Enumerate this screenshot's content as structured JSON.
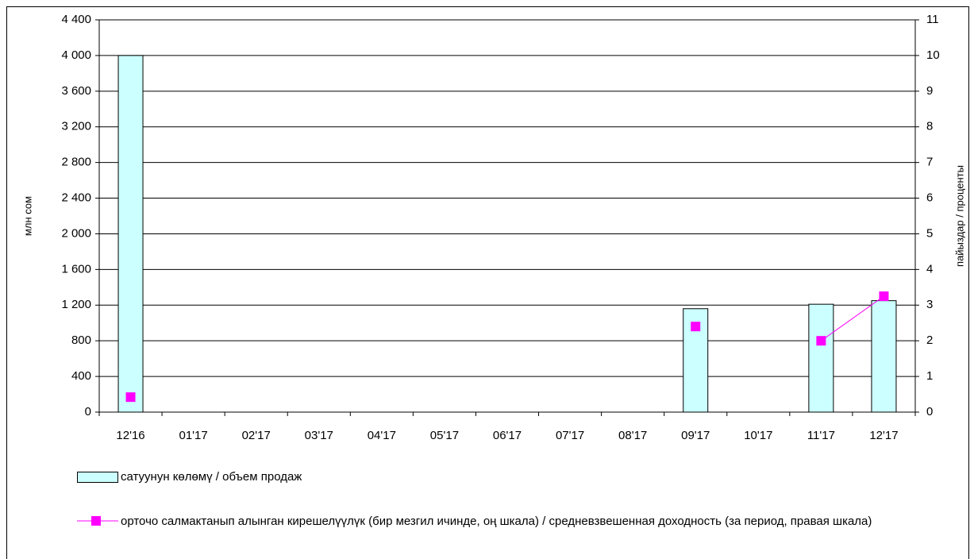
{
  "chart_data": {
    "type": "bar",
    "categories": [
      "12'16",
      "01'17",
      "02'17",
      "03'17",
      "04'17",
      "05'17",
      "06'17",
      "07'17",
      "08'17",
      "09'17",
      "10'17",
      "11'17",
      "12'17"
    ],
    "series": [
      {
        "name": "сатуунун көлөмү /  объем продаж",
        "type": "bar",
        "color": "#ccffff",
        "values": [
          4000,
          null,
          null,
          null,
          null,
          null,
          null,
          null,
          null,
          1160,
          null,
          1210,
          1250
        ]
      },
      {
        "name": "орточо салмактанып алынган кирешелүүлүк (бир мезгил ичинде, оң шкала) / средневзвешенная доходность (за период, правая шкала)",
        "type": "line",
        "axis": "y2",
        "color": "#ff00ff",
        "values": [
          0.42,
          null,
          null,
          null,
          null,
          null,
          null,
          null,
          null,
          2.4,
          null,
          2.0,
          3.25
        ]
      }
    ],
    "ylabel": "млн сом",
    "y2label": "пайыздар / проценты",
    "ylim": [
      0,
      4400
    ],
    "yticks": [
      0,
      {
        "value": 400,
        "label": "400"
      },
      {
        "value": 800,
        "label": "800"
      },
      {
        "value": 1200,
        "label": "1 200"
      },
      {
        "value": 1600,
        "label": "1 600"
      },
      {
        "value": 2000,
        "label": "2 000"
      },
      {
        "value": 2400,
        "label": "2 400"
      },
      {
        "value": 2800,
        "label": "2 800"
      },
      {
        "value": 3200,
        "label": "3 200"
      },
      {
        "value": 3600,
        "label": "3 600"
      },
      {
        "value": 4000,
        "label": "4 000"
      },
      {
        "value": 4400,
        "label": "4 400"
      }
    ],
    "y2lim": [
      0,
      11
    ],
    "y2ticks": [
      0,
      1,
      2,
      3,
      4,
      5,
      6,
      7,
      8,
      9,
      10,
      11
    ],
    "grid": true
  }
}
